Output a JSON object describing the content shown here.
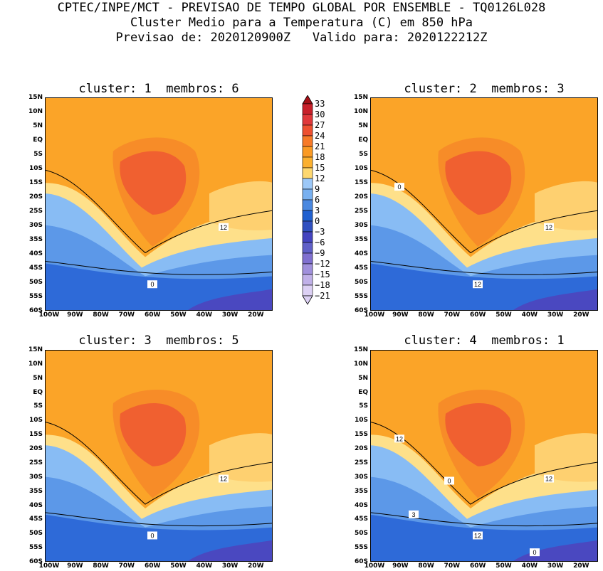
{
  "header": {
    "line1": "CPTEC/INPE/MCT - PREVISAO DE TEMPO GLOBAL POR ENSEMBLE - TQ0126L028",
    "line2": "Cluster Medio para a Temperatura (C) em 850 hPa",
    "line3": "Previsao de: 2020120900Z   Valido para: 2020122212Z"
  },
  "panels": [
    {
      "title": "cluster: 1  membros: 6",
      "labels": [
        "12",
        "0"
      ]
    },
    {
      "title": "cluster: 2  membros: 3",
      "labels": [
        "12",
        "12",
        "0"
      ]
    },
    {
      "title": "cluster: 3  membros: 5",
      "labels": [
        "12",
        "0"
      ]
    },
    {
      "title": "cluster: 4  membros: 1",
      "labels": [
        "12",
        "12",
        "12",
        "0",
        "3",
        "0"
      ]
    }
  ],
  "lat_ticks": [
    "15N",
    "10N",
    "5N",
    "EQ",
    "5S",
    "10S",
    "15S",
    "20S",
    "25S",
    "30S",
    "35S",
    "40S",
    "45S",
    "50S",
    "55S",
    "60S"
  ],
  "lon_ticks": [
    "100W",
    "90W",
    "80W",
    "70W",
    "60W",
    "50W",
    "40W",
    "30W",
    "20W"
  ],
  "colorbar": {
    "labels": [
      "33",
      "30",
      "27",
      "24",
      "21",
      "18",
      "15",
      "12",
      "9",
      "6",
      "3",
      "0",
      "-3",
      "-6",
      "-9",
      "-12",
      "-15",
      "-18",
      "-21"
    ],
    "colors": [
      "#a50f15",
      "#c8202a",
      "#e0383a",
      "#ee5030",
      "#f77a28",
      "#fa9a24",
      "#fbb030",
      "#fed870",
      "#9cc8f8",
      "#78b0f0",
      "#4a88e0",
      "#2060d0",
      "#3050c0",
      "#4444c0",
      "#6060c8",
      "#8070d0",
      "#a090dc",
      "#c0b0e8",
      "#dcd0f4"
    ]
  }
}
